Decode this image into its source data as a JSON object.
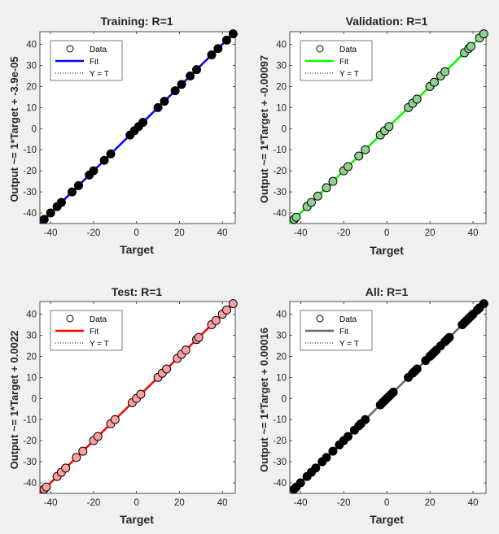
{
  "chart_data": [
    {
      "type": "scatter",
      "title": "Training: R=1",
      "xlabel": "Target",
      "ylabel": "Output ~= 1*Target + -3.9e-05",
      "xlim": [
        -45,
        46
      ],
      "ylim": [
        -45,
        46
      ],
      "xticks": [
        -40,
        -20,
        0,
        20,
        40
      ],
      "yticks": [
        -40,
        -30,
        -20,
        -10,
        0,
        10,
        20,
        30,
        40
      ],
      "grid": false,
      "legend_position": "top-left",
      "legend": [
        "Data",
        "Fit",
        "Y = T"
      ],
      "fit_color": "#0000ff",
      "marker_fill": "#000000",
      "fit": {
        "slope": 1,
        "intercept": -3.9e-05
      },
      "points": [
        {
          "x": -43,
          "y": -43
        },
        {
          "x": -40,
          "y": -40
        },
        {
          "x": -37,
          "y": -37
        },
        {
          "x": -35,
          "y": -35
        },
        {
          "x": -30,
          "y": -30
        },
        {
          "x": -27,
          "y": -27
        },
        {
          "x": -22,
          "y": -22
        },
        {
          "x": -20,
          "y": -20
        },
        {
          "x": -15,
          "y": -15
        },
        {
          "x": -12,
          "y": -12
        },
        {
          "x": -3,
          "y": -3
        },
        {
          "x": -1,
          "y": -1
        },
        {
          "x": 1,
          "y": 1
        },
        {
          "x": 3,
          "y": 3
        },
        {
          "x": 10,
          "y": 10
        },
        {
          "x": 13,
          "y": 13
        },
        {
          "x": 18,
          "y": 18
        },
        {
          "x": 21,
          "y": 21
        },
        {
          "x": 25,
          "y": 25
        },
        {
          "x": 28,
          "y": 28
        },
        {
          "x": 35,
          "y": 35
        },
        {
          "x": 38,
          "y": 38
        },
        {
          "x": 42,
          "y": 42
        },
        {
          "x": 45,
          "y": 45
        }
      ]
    },
    {
      "type": "scatter",
      "title": "Validation: R=1",
      "xlabel": "Target",
      "ylabel": "Output ~= 1*Target + -0.00097",
      "xlim": [
        -45,
        46
      ],
      "ylim": [
        -45,
        46
      ],
      "xticks": [
        -40,
        -20,
        0,
        20,
        40
      ],
      "yticks": [
        -40,
        -30,
        -20,
        -10,
        0,
        10,
        20,
        30,
        40
      ],
      "grid": false,
      "legend_position": "top-left",
      "legend": [
        "Data",
        "Fit",
        "Y = T"
      ],
      "fit_color": "#00ff00",
      "marker_fill": "#8fd18f",
      "fit": {
        "slope": 1,
        "intercept": -0.00097
      },
      "points": [
        {
          "x": -43,
          "y": -43
        },
        {
          "x": -42,
          "y": -42
        },
        {
          "x": -37,
          "y": -37
        },
        {
          "x": -35,
          "y": -35
        },
        {
          "x": -32,
          "y": -32
        },
        {
          "x": -28,
          "y": -28
        },
        {
          "x": -25,
          "y": -25
        },
        {
          "x": -20,
          "y": -20
        },
        {
          "x": -18,
          "y": -18
        },
        {
          "x": -13,
          "y": -13
        },
        {
          "x": -10,
          "y": -10
        },
        {
          "x": -3,
          "y": -3
        },
        {
          "x": -1,
          "y": -1
        },
        {
          "x": 1,
          "y": 1
        },
        {
          "x": 10,
          "y": 10
        },
        {
          "x": 12,
          "y": 12
        },
        {
          "x": 14,
          "y": 14
        },
        {
          "x": 20,
          "y": 20
        },
        {
          "x": 22,
          "y": 22
        },
        {
          "x": 25,
          "y": 25
        },
        {
          "x": 27,
          "y": 27
        },
        {
          "x": 36,
          "y": 36
        },
        {
          "x": 38,
          "y": 38
        },
        {
          "x": 39,
          "y": 39
        },
        {
          "x": 43,
          "y": 43
        },
        {
          "x": 45,
          "y": 45
        }
      ]
    },
    {
      "type": "scatter",
      "title": "Test: R=1",
      "xlabel": "Target",
      "ylabel": "Output ~= 1*Target + 0.0022",
      "xlim": [
        -45,
        46
      ],
      "ylim": [
        -45,
        46
      ],
      "xticks": [
        -40,
        -20,
        0,
        20,
        40
      ],
      "yticks": [
        -40,
        -30,
        -20,
        -10,
        0,
        10,
        20,
        30,
        40
      ],
      "grid": false,
      "legend_position": "top-left",
      "legend": [
        "Data",
        "Fit",
        "Y = T"
      ],
      "fit_color": "#ff0000",
      "marker_fill": "#ff9f9f",
      "fit": {
        "slope": 1,
        "intercept": 0.0022
      },
      "points": [
        {
          "x": -43,
          "y": -43
        },
        {
          "x": -42,
          "y": -42
        },
        {
          "x": -37,
          "y": -37
        },
        {
          "x": -35,
          "y": -35
        },
        {
          "x": -33,
          "y": -33
        },
        {
          "x": -28,
          "y": -28
        },
        {
          "x": -25,
          "y": -25
        },
        {
          "x": -20,
          "y": -20
        },
        {
          "x": -18,
          "y": -18
        },
        {
          "x": -12,
          "y": -12
        },
        {
          "x": -10,
          "y": -10
        },
        {
          "x": -2,
          "y": -2
        },
        {
          "x": 0,
          "y": 0
        },
        {
          "x": 2,
          "y": 2
        },
        {
          "x": 10,
          "y": 10
        },
        {
          "x": 12,
          "y": 12
        },
        {
          "x": 14,
          "y": 14
        },
        {
          "x": 19,
          "y": 19
        },
        {
          "x": 21,
          "y": 21
        },
        {
          "x": 23,
          "y": 23
        },
        {
          "x": 28,
          "y": 28
        },
        {
          "x": 29,
          "y": 29
        },
        {
          "x": 35,
          "y": 35
        },
        {
          "x": 37,
          "y": 37
        },
        {
          "x": 40,
          "y": 40
        },
        {
          "x": 42,
          "y": 42
        },
        {
          "x": 45,
          "y": 45
        }
      ]
    },
    {
      "type": "scatter",
      "title": "All: R=1",
      "xlabel": "Target",
      "ylabel": "Output ~= 1*Target + 0.00016",
      "xlim": [
        -45,
        46
      ],
      "ylim": [
        -45,
        46
      ],
      "xticks": [
        -40,
        -20,
        0,
        20,
        40
      ],
      "yticks": [
        -40,
        -30,
        -20,
        -10,
        0,
        10,
        20,
        30,
        40
      ],
      "grid": false,
      "legend_position": "top-left",
      "legend": [
        "Data",
        "Fit",
        "Y = T"
      ],
      "fit_color": "#666666",
      "marker_fill": "#000000",
      "fit": {
        "slope": 1,
        "intercept": 0.00016
      },
      "points": [
        {
          "x": -43,
          "y": -43
        },
        {
          "x": -42,
          "y": -42
        },
        {
          "x": -40,
          "y": -40
        },
        {
          "x": -37,
          "y": -37
        },
        {
          "x": -35,
          "y": -35
        },
        {
          "x": -33,
          "y": -33
        },
        {
          "x": -30,
          "y": -30
        },
        {
          "x": -28,
          "y": -28
        },
        {
          "x": -25,
          "y": -25
        },
        {
          "x": -22,
          "y": -22
        },
        {
          "x": -20,
          "y": -20
        },
        {
          "x": -18,
          "y": -18
        },
        {
          "x": -15,
          "y": -15
        },
        {
          "x": -13,
          "y": -13
        },
        {
          "x": -12,
          "y": -12
        },
        {
          "x": -10,
          "y": -10
        },
        {
          "x": -3,
          "y": -3
        },
        {
          "x": -2,
          "y": -2
        },
        {
          "x": -1,
          "y": -1
        },
        {
          "x": 0,
          "y": 0
        },
        {
          "x": 1,
          "y": 1
        },
        {
          "x": 2,
          "y": 2
        },
        {
          "x": 3,
          "y": 3
        },
        {
          "x": 10,
          "y": 10
        },
        {
          "x": 12,
          "y": 12
        },
        {
          "x": 13,
          "y": 13
        },
        {
          "x": 14,
          "y": 14
        },
        {
          "x": 18,
          "y": 18
        },
        {
          "x": 20,
          "y": 20
        },
        {
          "x": 21,
          "y": 21
        },
        {
          "x": 22,
          "y": 22
        },
        {
          "x": 23,
          "y": 23
        },
        {
          "x": 25,
          "y": 25
        },
        {
          "x": 27,
          "y": 27
        },
        {
          "x": 28,
          "y": 28
        },
        {
          "x": 29,
          "y": 29
        },
        {
          "x": 35,
          "y": 35
        },
        {
          "x": 36,
          "y": 36
        },
        {
          "x": 37,
          "y": 37
        },
        {
          "x": 38,
          "y": 38
        },
        {
          "x": 39,
          "y": 39
        },
        {
          "x": 40,
          "y": 40
        },
        {
          "x": 42,
          "y": 42
        },
        {
          "x": 43,
          "y": 43
        },
        {
          "x": 45,
          "y": 45
        }
      ]
    }
  ]
}
